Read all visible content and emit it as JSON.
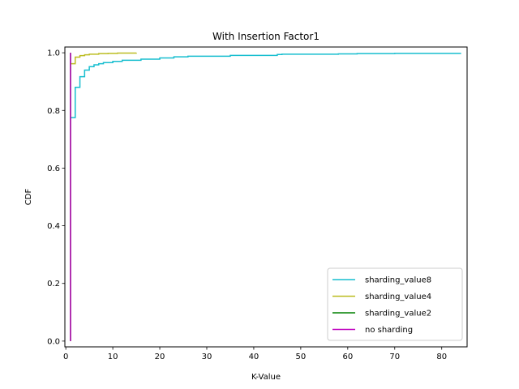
{
  "chart_data": {
    "type": "line",
    "title": "With Insertion Factor1",
    "xlabel": "K-Value",
    "ylabel": "CDF",
    "xlim": [
      -0.2,
      85.4
    ],
    "ylim": [
      -0.02,
      1.02
    ],
    "xticks": [
      0,
      10,
      20,
      30,
      40,
      50,
      60,
      70,
      80
    ],
    "yticks": [
      0.0,
      0.2,
      0.4,
      0.6,
      0.8,
      1.0
    ],
    "xtick_labels": [
      "0",
      "10",
      "20",
      "30",
      "40",
      "50",
      "60",
      "70",
      "80"
    ],
    "ytick_labels": [
      "0.0",
      "0.2",
      "0.4",
      "0.6",
      "0.8",
      "1.0"
    ],
    "grid": false,
    "legend_position": "lower-right",
    "step": true,
    "series": [
      {
        "name": "sharding_value8",
        "color": "#17becf",
        "points": [
          [
            1,
            0.775
          ],
          [
            2,
            0.88
          ],
          [
            3,
            0.917
          ],
          [
            4,
            0.94
          ],
          [
            5,
            0.952
          ],
          [
            6,
            0.958
          ],
          [
            7,
            0.962
          ],
          [
            8,
            0.966
          ],
          [
            10,
            0.97
          ],
          [
            12,
            0.974
          ],
          [
            16,
            0.978
          ],
          [
            20,
            0.982
          ],
          [
            23,
            0.986
          ],
          [
            26,
            0.988
          ],
          [
            35,
            0.991
          ],
          [
            45,
            0.994
          ],
          [
            46,
            0.995
          ],
          [
            58,
            0.996
          ],
          [
            62,
            0.997
          ],
          [
            70,
            0.998
          ],
          [
            84,
            1.0
          ]
        ]
      },
      {
        "name": "sharding_value4",
        "color": "#bcbd22",
        "points": [
          [
            1,
            0.962
          ],
          [
            2,
            0.985
          ],
          [
            3,
            0.99
          ],
          [
            4,
            0.993
          ],
          [
            5,
            0.995
          ],
          [
            7,
            0.997
          ],
          [
            9,
            0.998
          ],
          [
            11,
            0.999
          ],
          [
            15,
            1.0
          ]
        ]
      },
      {
        "name": "sharding_value2",
        "color": "#008000",
        "points": [
          [
            1,
            0.0
          ],
          [
            1,
            1.0
          ]
        ]
      },
      {
        "name": "no sharding",
        "color": "#bf00bf",
        "points": [
          [
            1,
            0.0
          ],
          [
            1,
            1.0
          ]
        ]
      }
    ]
  }
}
